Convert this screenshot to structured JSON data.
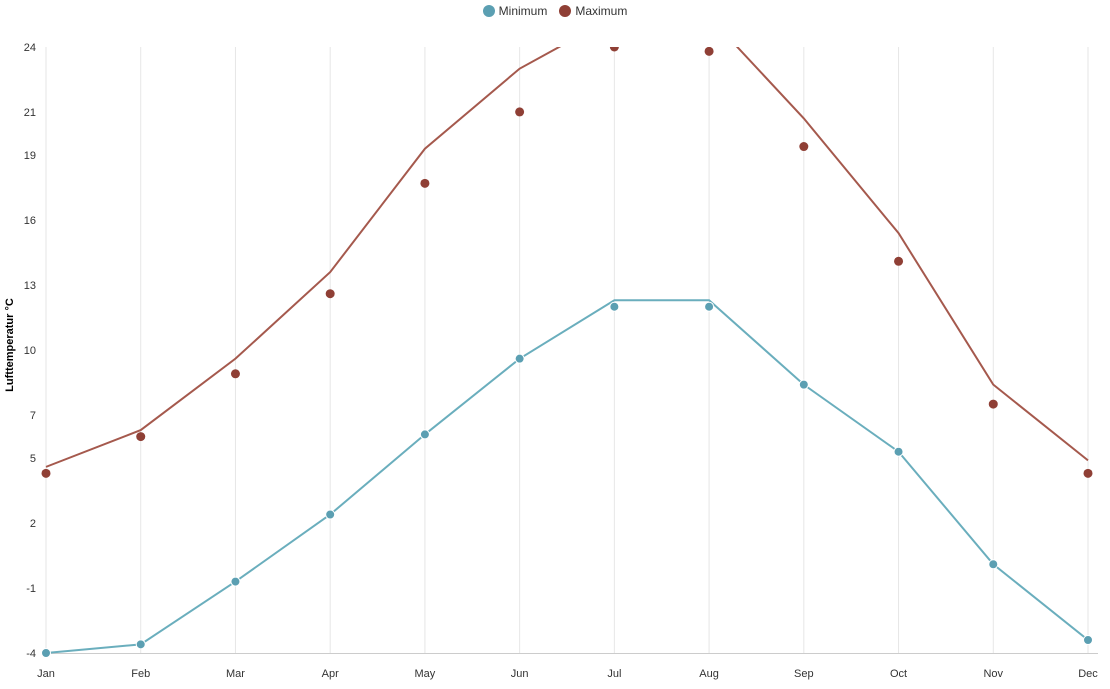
{
  "chart_data": {
    "type": "line",
    "categories": [
      "Jan",
      "Feb",
      "Mar",
      "Apr",
      "May",
      "Jun",
      "Jul",
      "Aug",
      "Sep",
      "Oct",
      "Nov",
      "Dec"
    ],
    "ylabel": "Lufttemperatur °C",
    "y_ticks": [
      "24",
      "21",
      "19",
      "16",
      "13",
      "10",
      "7",
      "5",
      "2",
      "-1",
      "-4"
    ],
    "ylim": [
      -4,
      24
    ],
    "grid": "vertical",
    "legend_position": "top-center",
    "series": [
      {
        "name": "Minimum",
        "color": "#5b9fb2",
        "line_color": "#6aaebd",
        "line": [
          -4.0,
          -3.6,
          -0.7,
          2.4,
          6.1,
          9.6,
          12.3,
          12.3,
          8.4,
          5.3,
          0.1,
          -3.4
        ],
        "markers": [
          -4.0,
          -3.6,
          -0.7,
          2.4,
          6.1,
          9.6,
          12.0,
          12.0,
          8.4,
          5.3,
          0.1,
          -3.4
        ]
      },
      {
        "name": "Maximum",
        "color": "#8f3f35",
        "line_color": "#a5594d",
        "line": [
          4.6,
          6.3,
          9.6,
          13.6,
          19.3,
          23.0,
          25.4,
          25.4,
          20.7,
          15.4,
          8.4,
          4.9
        ],
        "markers": [
          4.3,
          6.0,
          8.9,
          12.6,
          17.7,
          21.0,
          24.0,
          23.8,
          19.4,
          14.1,
          7.5,
          4.3
        ]
      }
    ]
  }
}
